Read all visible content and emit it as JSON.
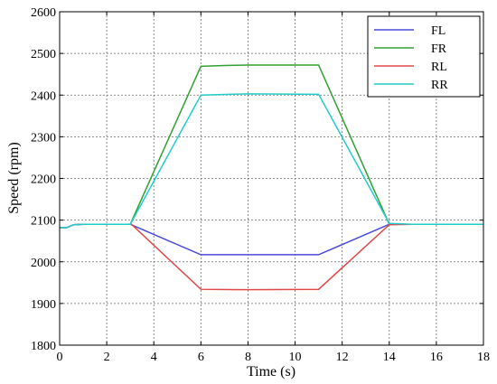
{
  "chart_data": {
    "type": "line",
    "title": "",
    "xlabel": "Time (s)",
    "ylabel": "Speed (rpm)",
    "xlim": [
      0,
      18
    ],
    "ylim": [
      1800,
      2600
    ],
    "xticks": [
      0,
      2,
      4,
      6,
      8,
      10,
      12,
      14,
      16,
      18
    ],
    "yticks": [
      1800,
      1900,
      2000,
      2100,
      2200,
      2300,
      2400,
      2500,
      2600
    ],
    "grid": true,
    "legend_position": "top-right",
    "series": [
      {
        "name": "FL",
        "color": "#4b4bd8",
        "points": [
          [
            0,
            2082
          ],
          [
            0.3,
            2082
          ],
          [
            0.6,
            2089
          ],
          [
            1,
            2090
          ],
          [
            2,
            2090
          ],
          [
            3,
            2090
          ],
          [
            6,
            2017
          ],
          [
            11,
            2017
          ],
          [
            14,
            2090
          ],
          [
            15,
            2090
          ],
          [
            18,
            2090
          ]
        ]
      },
      {
        "name": "FR",
        "color": "#33a033",
        "points": [
          [
            0,
            2082
          ],
          [
            0.3,
            2082
          ],
          [
            0.6,
            2089
          ],
          [
            1,
            2090
          ],
          [
            2,
            2090
          ],
          [
            3,
            2090
          ],
          [
            6,
            2469
          ],
          [
            7,
            2471
          ],
          [
            8,
            2472
          ],
          [
            11,
            2472
          ],
          [
            14,
            2090
          ],
          [
            15,
            2090
          ],
          [
            18,
            2090
          ]
        ]
      },
      {
        "name": "RL",
        "color": "#e04848",
        "points": [
          [
            0,
            2082
          ],
          [
            0.3,
            2082
          ],
          [
            0.6,
            2089
          ],
          [
            1,
            2090
          ],
          [
            2,
            2090
          ],
          [
            3.05,
            2090
          ],
          [
            6,
            1934
          ],
          [
            8,
            1933
          ],
          [
            11,
            1934
          ],
          [
            14,
            2089
          ],
          [
            15,
            2090
          ],
          [
            18,
            2090
          ]
        ]
      },
      {
        "name": "RR",
        "color": "#22cccc",
        "points": [
          [
            0,
            2082
          ],
          [
            0.3,
            2082
          ],
          [
            0.6,
            2089
          ],
          [
            1,
            2090
          ],
          [
            2,
            2090
          ],
          [
            3,
            2090
          ],
          [
            6,
            2400
          ],
          [
            8,
            2403
          ],
          [
            11,
            2402
          ],
          [
            14,
            2092
          ],
          [
            15,
            2090
          ],
          [
            18,
            2090
          ]
        ]
      }
    ]
  }
}
